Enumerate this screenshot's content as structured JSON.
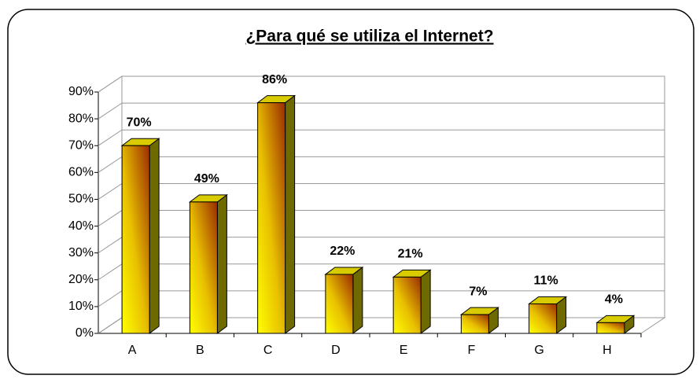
{
  "chart_data": {
    "type": "bar3d",
    "title": "¿Para qué se utiliza el Internet?",
    "categories": [
      "A",
      "B",
      "C",
      "D",
      "E",
      "F",
      "G",
      "H"
    ],
    "values": [
      70,
      49,
      86,
      22,
      21,
      7,
      11,
      4
    ],
    "value_labels": [
      "70%",
      "49%",
      "86%",
      "22%",
      "21%",
      "7%",
      "11%",
      "4%"
    ],
    "color": "#ffff00",
    "ylim": [
      0,
      90
    ],
    "yticks": [
      {
        "value": 0,
        "label": "0%"
      },
      {
        "value": 10,
        "label": "10%"
      },
      {
        "value": 20,
        "label": "20%"
      },
      {
        "value": 30,
        "label": "30%"
      },
      {
        "value": 40,
        "label": "40%"
      },
      {
        "value": 50,
        "label": "50%"
      },
      {
        "value": 60,
        "label": "60%"
      },
      {
        "value": 70,
        "label": "70%"
      },
      {
        "value": 80,
        "label": "80%"
      },
      {
        "value": 90,
        "label": "90%"
      }
    ],
    "grid": true
  }
}
